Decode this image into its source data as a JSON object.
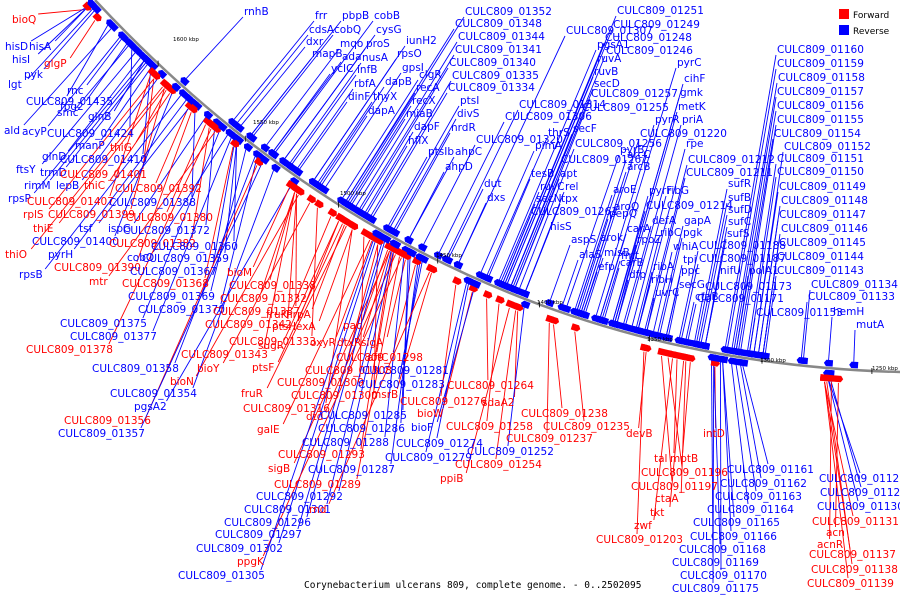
{
  "caption": "Corynebacterium ulcerans 809, complete genome. - 0..2502095",
  "legend": [
    {
      "label": "Forward",
      "color": "#ff0000"
    },
    {
      "label": "Reverse",
      "color": "#0000ff"
    }
  ],
  "colors": {
    "forward": "#ff0000",
    "reverse": "#0000ff",
    "backbone": "#888888"
  },
  "ticks": [
    "1600 kbp",
    "1550 kbp",
    "1500 kbp",
    "1450 kbp",
    "1400 kbp",
    "1350 kbp",
    "1300 kbp",
    "1250 kbp"
  ],
  "genes": [
    {
      "name": "bioQ",
      "strand": "forward"
    },
    {
      "name": "hisD",
      "strand": "reverse"
    },
    {
      "name": "hisA",
      "strand": "reverse"
    },
    {
      "name": "hisI",
      "strand": "reverse"
    },
    {
      "name": "glgP",
      "strand": "forward"
    },
    {
      "name": "pyk",
      "strand": "reverse"
    },
    {
      "name": "lgt",
      "strand": "reverse"
    },
    {
      "name": "rnc",
      "strand": "reverse"
    },
    {
      "name": "fpg2",
      "strand": "reverse"
    },
    {
      "name": "CULC809_01435",
      "strand": "reverse"
    },
    {
      "name": "smc",
      "strand": "reverse"
    },
    {
      "name": "glnB",
      "strand": "reverse"
    },
    {
      "name": "ald",
      "strand": "reverse"
    },
    {
      "name": "acyP",
      "strand": "reverse"
    },
    {
      "name": "CULC809_01424",
      "strand": "reverse"
    },
    {
      "name": "manP",
      "strand": "reverse"
    },
    {
      "name": "thiG",
      "strand": "forward"
    },
    {
      "name": "glnD",
      "strand": "reverse"
    },
    {
      "name": "CULC809_01410",
      "strand": "reverse"
    },
    {
      "name": "ftsY",
      "strand": "reverse"
    },
    {
      "name": "trmD",
      "strand": "reverse"
    },
    {
      "name": "CULC809_01401",
      "strand": "forward"
    },
    {
      "name": "rimM",
      "strand": "reverse"
    },
    {
      "name": "lepB",
      "strand": "reverse"
    },
    {
      "name": "thiC",
      "strand": "forward"
    },
    {
      "name": "CULC809_01392",
      "strand": "forward"
    },
    {
      "name": "rpsP",
      "strand": "reverse"
    },
    {
      "name": "CULC809_01407",
      "strand": "forward"
    },
    {
      "name": "CULC809_01388",
      "strand": "reverse"
    },
    {
      "name": "rplS",
      "strand": "forward"
    },
    {
      "name": "CULC809_01399",
      "strand": "forward"
    },
    {
      "name": "CULC809_01380",
      "strand": "forward"
    },
    {
      "name": "thiE",
      "strand": "forward"
    },
    {
      "name": "tsf",
      "strand": "reverse"
    },
    {
      "name": "ispG",
      "strand": "reverse"
    },
    {
      "name": "CULC809_01372",
      "strand": "reverse"
    },
    {
      "name": "CULC809_01400",
      "strand": "reverse"
    },
    {
      "name": "CULC809_01382",
      "strand": "forward"
    },
    {
      "name": "thiO",
      "strand": "forward"
    },
    {
      "name": "pyrH",
      "strand": "reverse"
    },
    {
      "name": "CULC809_01360",
      "strand": "reverse"
    },
    {
      "name": "cobO",
      "strand": "reverse"
    },
    {
      "name": "CULC809_01359",
      "strand": "reverse"
    },
    {
      "name": "rpsB",
      "strand": "reverse"
    },
    {
      "name": "CULC809_01390",
      "strand": "forward"
    },
    {
      "name": "CULC809_01367",
      "strand": "reverse"
    },
    {
      "name": "mtr",
      "strand": "forward"
    },
    {
      "name": "CULC809_01368",
      "strand": "forward"
    },
    {
      "name": "CULC809_01369",
      "strand": "reverse"
    },
    {
      "name": "CULC809_01370",
      "strand": "reverse"
    },
    {
      "name": "CULC809_01375",
      "strand": "reverse"
    },
    {
      "name": "CULC809_01377",
      "strand": "reverse"
    },
    {
      "name": "CULC809_01378",
      "strand": "forward"
    },
    {
      "name": "CULC809_01358",
      "strand": "reverse"
    },
    {
      "name": "bioY",
      "strand": "forward"
    },
    {
      "name": "bioN",
      "strand": "forward"
    },
    {
      "name": "CULC809_01354",
      "strand": "reverse"
    },
    {
      "name": "pgsA2",
      "strand": "reverse"
    },
    {
      "name": "CULC809_01356",
      "strand": "forward"
    },
    {
      "name": "CULC809_01357",
      "strand": "reverse"
    },
    {
      "name": "bioM",
      "strand": "forward"
    },
    {
      "name": "CULC809_01338",
      "strand": "forward"
    },
    {
      "name": "CULC809_01332",
      "strand": "forward"
    },
    {
      "name": "CULC809_01337",
      "strand": "forward"
    },
    {
      "name": "CULC809_01342",
      "strand": "forward"
    },
    {
      "name": "CULC809_01333",
      "strand": "forward"
    },
    {
      "name": "CULC809_01343",
      "strand": "forward"
    },
    {
      "name": "fruK",
      "strand": "forward"
    },
    {
      "name": "hrpA",
      "strand": "forward"
    },
    {
      "name": "ptsH",
      "strand": "forward"
    },
    {
      "name": "lexA",
      "strand": "forward"
    },
    {
      "name": "pac",
      "strand": "forward"
    },
    {
      "name": "sugR",
      "strand": "forward"
    },
    {
      "name": "oxyR",
      "strand": "forward"
    },
    {
      "name": "dtxR",
      "strand": "forward"
    },
    {
      "name": "sigA",
      "strand": "forward"
    },
    {
      "name": "CULC809_01298",
      "strand": "forward"
    },
    {
      "name": "aftC",
      "strand": "forward"
    },
    {
      "name": "ptsF",
      "strand": "forward"
    },
    {
      "name": "CULC809_01308",
      "strand": "forward"
    },
    {
      "name": "CULC809_01281",
      "strand": "reverse"
    },
    {
      "name": "CULC809_01309",
      "strand": "forward"
    },
    {
      "name": "CULC809_01283",
      "strand": "reverse"
    },
    {
      "name": "fruR",
      "strand": "forward"
    },
    {
      "name": "CULC809_01300",
      "strand": "forward"
    },
    {
      "name": "msrB",
      "strand": "forward"
    },
    {
      "name": "CULC809_01316",
      "strand": "forward"
    },
    {
      "name": "dtd",
      "strand": "forward"
    },
    {
      "name": "CULC809_01285",
      "strand": "reverse"
    },
    {
      "name": "bioW",
      "strand": "forward"
    },
    {
      "name": "bioF",
      "strand": "reverse"
    },
    {
      "name": "galE",
      "strand": "forward"
    },
    {
      "name": "CULC809_01286",
      "strand": "reverse"
    },
    {
      "name": "CULC809_01288",
      "strand": "reverse"
    },
    {
      "name": "CULC809_01274",
      "strand": "reverse"
    },
    {
      "name": "CULC809_01293",
      "strand": "forward"
    },
    {
      "name": "CULC809_01279",
      "strand": "reverse"
    },
    {
      "name": "sigB",
      "strand": "forward"
    },
    {
      "name": "CULC809_01287",
      "strand": "reverse"
    },
    {
      "name": "CULC809_01289",
      "strand": "forward"
    },
    {
      "name": "CULC809_01292",
      "strand": "reverse"
    },
    {
      "name": "CULC809_01301",
      "strand": "reverse"
    },
    {
      "name": "rnd",
      "strand": "forward"
    },
    {
      "name": "CULC809_01296",
      "strand": "reverse"
    },
    {
      "name": "CULC809_01297",
      "strand": "reverse"
    },
    {
      "name": "CULC809_01302",
      "strand": "reverse"
    },
    {
      "name": "ppgK",
      "strand": "forward"
    },
    {
      "name": "CULC809_01305",
      "strand": "reverse"
    },
    {
      "name": "rnhB",
      "strand": "reverse"
    },
    {
      "name": "frr",
      "strand": "reverse"
    },
    {
      "name": "pbpB",
      "strand": "reverse"
    },
    {
      "name": "cobB",
      "strand": "reverse"
    },
    {
      "name": "cdsA",
      "strand": "reverse"
    },
    {
      "name": "dxr",
      "strand": "reverse"
    },
    {
      "name": "cobQ",
      "strand": "reverse"
    },
    {
      "name": "cysG",
      "strand": "reverse"
    },
    {
      "name": "mapB",
      "strand": "reverse"
    },
    {
      "name": "mqo",
      "strand": "reverse"
    },
    {
      "name": "proS",
      "strand": "reverse"
    },
    {
      "name": "ada",
      "strand": "reverse"
    },
    {
      "name": "nusA",
      "strand": "reverse"
    },
    {
      "name": "ycIC",
      "strand": "reverse"
    },
    {
      "name": "infB",
      "strand": "reverse"
    },
    {
      "name": "rbfA",
      "strand": "reverse"
    },
    {
      "name": "dapB",
      "strand": "reverse"
    },
    {
      "name": "dinF",
      "strand": "reverse"
    },
    {
      "name": "thyX",
      "strand": "reverse"
    },
    {
      "name": "dapA",
      "strand": "reverse"
    },
    {
      "name": "iunH2",
      "strand": "reverse"
    },
    {
      "name": "rpsO",
      "strand": "reverse"
    },
    {
      "name": "gpsI",
      "strand": "reverse"
    },
    {
      "name": "clgR",
      "strand": "reverse"
    },
    {
      "name": "recA",
      "strand": "reverse"
    },
    {
      "name": "recX",
      "strand": "reverse"
    },
    {
      "name": "miaB",
      "strand": "reverse"
    },
    {
      "name": "dapF",
      "strand": "reverse"
    },
    {
      "name": "hflX",
      "strand": "reverse"
    },
    {
      "name": "ptsI",
      "strand": "reverse"
    },
    {
      "name": "divS",
      "strand": "reverse"
    },
    {
      "name": "nrdR",
      "strand": "reverse"
    },
    {
      "name": "ptsIb",
      "strand": "reverse"
    },
    {
      "name": "ahpC",
      "strand": "reverse"
    },
    {
      "name": "ahpD",
      "strand": "reverse"
    },
    {
      "name": "dut",
      "strand": "reverse"
    },
    {
      "name": "dxs",
      "strand": "reverse"
    },
    {
      "name": "CULC809_01352",
      "strand": "reverse"
    },
    {
      "name": "CULC809_01348",
      "strand": "reverse"
    },
    {
      "name": "CULC809_01344",
      "strand": "reverse"
    },
    {
      "name": "CULC809_01341",
      "strand": "reverse"
    },
    {
      "name": "CULC809_01340",
      "strand": "reverse"
    },
    {
      "name": "CULC809_01335",
      "strand": "reverse"
    },
    {
      "name": "CULC809_01334",
      "strand": "reverse"
    },
    {
      "name": "CULC809_01320",
      "strand": "reverse"
    },
    {
      "name": "CULC809_01314",
      "strand": "reverse"
    },
    {
      "name": "CULC809_01306",
      "strand": "reverse"
    },
    {
      "name": "CULC809_01307",
      "strand": "reverse"
    },
    {
      "name": "pgsA1",
      "strand": "reverse"
    },
    {
      "name": "ruvA",
      "strand": "reverse"
    },
    {
      "name": "ruvB",
      "strand": "reverse"
    },
    {
      "name": "secD",
      "strand": "reverse"
    },
    {
      "name": "CULC809_01251",
      "strand": "reverse"
    },
    {
      "name": "CULC809_01249",
      "strand": "reverse"
    },
    {
      "name": "CULC809_01248",
      "strand": "reverse"
    },
    {
      "name": "CULC809_01246",
      "strand": "reverse"
    },
    {
      "name": "CULC809_01257",
      "strand": "reverse"
    },
    {
      "name": "CULC809_01255",
      "strand": "reverse"
    },
    {
      "name": "thrS",
      "strand": "reverse"
    },
    {
      "name": "secF",
      "strand": "reverse"
    },
    {
      "name": "pimA",
      "strand": "reverse"
    },
    {
      "name": "CULC809_01256",
      "strand": "reverse"
    },
    {
      "name": "tesB",
      "strand": "reverse"
    },
    {
      "name": "apt",
      "strand": "reverse"
    },
    {
      "name": "CULC809_01267",
      "strand": "reverse"
    },
    {
      "name": "ruvC",
      "strand": "reverse"
    },
    {
      "name": "rel",
      "strand": "reverse"
    },
    {
      "name": "secN",
      "strand": "reverse"
    },
    {
      "name": "tpx",
      "strand": "reverse"
    },
    {
      "name": "CULC809_01261",
      "strand": "reverse"
    },
    {
      "name": "hisS",
      "strand": "reverse"
    },
    {
      "name": "aspS",
      "strand": "reverse"
    },
    {
      "name": "alaS",
      "strand": "reverse"
    },
    {
      "name": "misB",
      "strand": "reverse"
    },
    {
      "name": "efp",
      "strand": "reverse"
    },
    {
      "name": "CULC809_01264",
      "strand": "forward"
    },
    {
      "name": "sdaA2",
      "strand": "forward"
    },
    {
      "name": "CULC809_01276",
      "strand": "forward"
    },
    {
      "name": "CULC809_01258",
      "strand": "forward"
    },
    {
      "name": "CULC809_01252",
      "strand": "reverse"
    },
    {
      "name": "CULC809_01254",
      "strand": "forward"
    },
    {
      "name": "ppiB",
      "strand": "forward"
    },
    {
      "name": "CULC809_01238",
      "strand": "forward"
    },
    {
      "name": "CULC809_01235",
      "strand": "forward"
    },
    {
      "name": "CULC809_01237",
      "strand": "forward"
    },
    {
      "name": "pyrC",
      "strand": "reverse"
    },
    {
      "name": "cihF",
      "strand": "reverse"
    },
    {
      "name": "gmk",
      "strand": "reverse"
    },
    {
      "name": "metK",
      "strand": "reverse"
    },
    {
      "name": "pyrR",
      "strand": "reverse"
    },
    {
      "name": "priA",
      "strand": "reverse"
    },
    {
      "name": "CULC809_01220",
      "strand": "reverse"
    },
    {
      "name": "rpe",
      "strand": "reverse"
    },
    {
      "name": "pyrB",
      "strand": "reverse"
    },
    {
      "name": "arcC",
      "strand": "reverse"
    },
    {
      "name": "arcB",
      "strand": "reverse"
    },
    {
      "name": "CULC809_01212",
      "strand": "reverse"
    },
    {
      "name": "CULC809_01211",
      "strand": "reverse"
    },
    {
      "name": "aroE",
      "strand": "reverse"
    },
    {
      "name": "pyrF",
      "strand": "reverse"
    },
    {
      "name": "ribG",
      "strand": "reverse"
    },
    {
      "name": "aroQ",
      "strand": "reverse"
    },
    {
      "name": "CULC809_01214",
      "strand": "reverse"
    },
    {
      "name": "pepQ",
      "strand": "reverse"
    },
    {
      "name": "defA",
      "strand": "reverse"
    },
    {
      "name": "gapA",
      "strand": "reverse"
    },
    {
      "name": "carA",
      "strand": "reverse"
    },
    {
      "name": "ribC",
      "strand": "reverse"
    },
    {
      "name": "pgk",
      "strand": "reverse"
    },
    {
      "name": "arok",
      "strand": "reverse"
    },
    {
      "name": "rpoZ",
      "strand": "reverse"
    },
    {
      "name": "whiA",
      "strand": "reverse"
    },
    {
      "name": "tpi",
      "strand": "reverse"
    },
    {
      "name": "fmt",
      "strand": "reverse"
    },
    {
      "name": "carB",
      "strand": "reverse"
    },
    {
      "name": "ribA",
      "strand": "reverse"
    },
    {
      "name": "ppc",
      "strand": "reverse"
    },
    {
      "name": "dfp",
      "strand": "reverse"
    },
    {
      "name": "ribH",
      "strand": "reverse"
    },
    {
      "name": "secG",
      "strand": "reverse"
    },
    {
      "name": "uvrC",
      "strand": "reverse"
    },
    {
      "name": "ctaB",
      "strand": "reverse"
    },
    {
      "name": "devB",
      "strand": "forward"
    },
    {
      "name": "tal",
      "strand": "forward"
    },
    {
      "name": "mptB",
      "strand": "forward"
    },
    {
      "name": "intD",
      "strand": "forward"
    },
    {
      "name": "CULC809_01196",
      "strand": "forward"
    },
    {
      "name": "CULC809_01197",
      "strand": "forward"
    },
    {
      "name": "ctaA",
      "strand": "forward"
    },
    {
      "name": "tkt",
      "strand": "forward"
    },
    {
      "name": "zwf",
      "strand": "forward"
    },
    {
      "name": "CULC809_01203",
      "strand": "forward"
    },
    {
      "name": "sufR",
      "strand": "reverse"
    },
    {
      "name": "sufB",
      "strand": "reverse"
    },
    {
      "name": "sufD",
      "strand": "reverse"
    },
    {
      "name": "sufC",
      "strand": "reverse"
    },
    {
      "name": "sufS",
      "strand": "reverse"
    },
    {
      "name": "nifU",
      "strand": "reverse"
    },
    {
      "name": "polA1",
      "strand": "reverse"
    },
    {
      "name": "CULC809_01188",
      "strand": "reverse"
    },
    {
      "name": "CULC809_01187",
      "strand": "reverse"
    },
    {
      "name": "CULC809_01173",
      "strand": "reverse"
    },
    {
      "name": "CULC809_01171",
      "strand": "reverse"
    },
    {
      "name": "CULC809_01153",
      "strand": "reverse"
    },
    {
      "name": "CULC809_01161",
      "strand": "reverse"
    },
    {
      "name": "CULC809_01162",
      "strand": "reverse"
    },
    {
      "name": "CULC809_01163",
      "strand": "reverse"
    },
    {
      "name": "CULC809_01164",
      "strand": "reverse"
    },
    {
      "name": "CULC809_01165",
      "strand": "reverse"
    },
    {
      "name": "CULC809_01166",
      "strand": "reverse"
    },
    {
      "name": "CULC809_01168",
      "strand": "reverse"
    },
    {
      "name": "CULC809_01169",
      "strand": "reverse"
    },
    {
      "name": "CULC809_01170",
      "strand": "reverse"
    },
    {
      "name": "CULC809_01175",
      "strand": "reverse"
    },
    {
      "name": "CULC809_01160",
      "strand": "reverse"
    },
    {
      "name": "CULC809_01159",
      "strand": "reverse"
    },
    {
      "name": "CULC809_01158",
      "strand": "reverse"
    },
    {
      "name": "CULC809_01157",
      "strand": "reverse"
    },
    {
      "name": "CULC809_01156",
      "strand": "reverse"
    },
    {
      "name": "CULC809_01155",
      "strand": "reverse"
    },
    {
      "name": "CULC809_01154",
      "strand": "reverse"
    },
    {
      "name": "CULC809_01152",
      "strand": "reverse"
    },
    {
      "name": "CULC809_01151",
      "strand": "reverse"
    },
    {
      "name": "CULC809_01150",
      "strand": "reverse"
    },
    {
      "name": "CULC809_01149",
      "strand": "reverse"
    },
    {
      "name": "CULC809_01148",
      "strand": "reverse"
    },
    {
      "name": "CULC809_01147",
      "strand": "reverse"
    },
    {
      "name": "CULC809_01146",
      "strand": "reverse"
    },
    {
      "name": "CULC809_01145",
      "strand": "reverse"
    },
    {
      "name": "CULC809_01144",
      "strand": "reverse"
    },
    {
      "name": "CULC809_01143",
      "strand": "reverse"
    },
    {
      "name": "CULC809_01134",
      "strand": "reverse"
    },
    {
      "name": "CULC809_01133",
      "strand": "reverse"
    },
    {
      "name": "hemH",
      "strand": "reverse"
    },
    {
      "name": "mutA",
      "strand": "reverse"
    },
    {
      "name": "CULC809_01128",
      "strand": "reverse"
    },
    {
      "name": "CULC809_01129",
      "strand": "reverse"
    },
    {
      "name": "CULC809_01130",
      "strand": "reverse"
    },
    {
      "name": "CULC809_01131",
      "strand": "forward"
    },
    {
      "name": "acn",
      "strand": "forward"
    },
    {
      "name": "acnR",
      "strand": "forward"
    },
    {
      "name": "CULC809_01137",
      "strand": "forward"
    },
    {
      "name": "CULC809_01138",
      "strand": "forward"
    },
    {
      "name": "CULC809_01139",
      "strand": "forward"
    }
  ]
}
